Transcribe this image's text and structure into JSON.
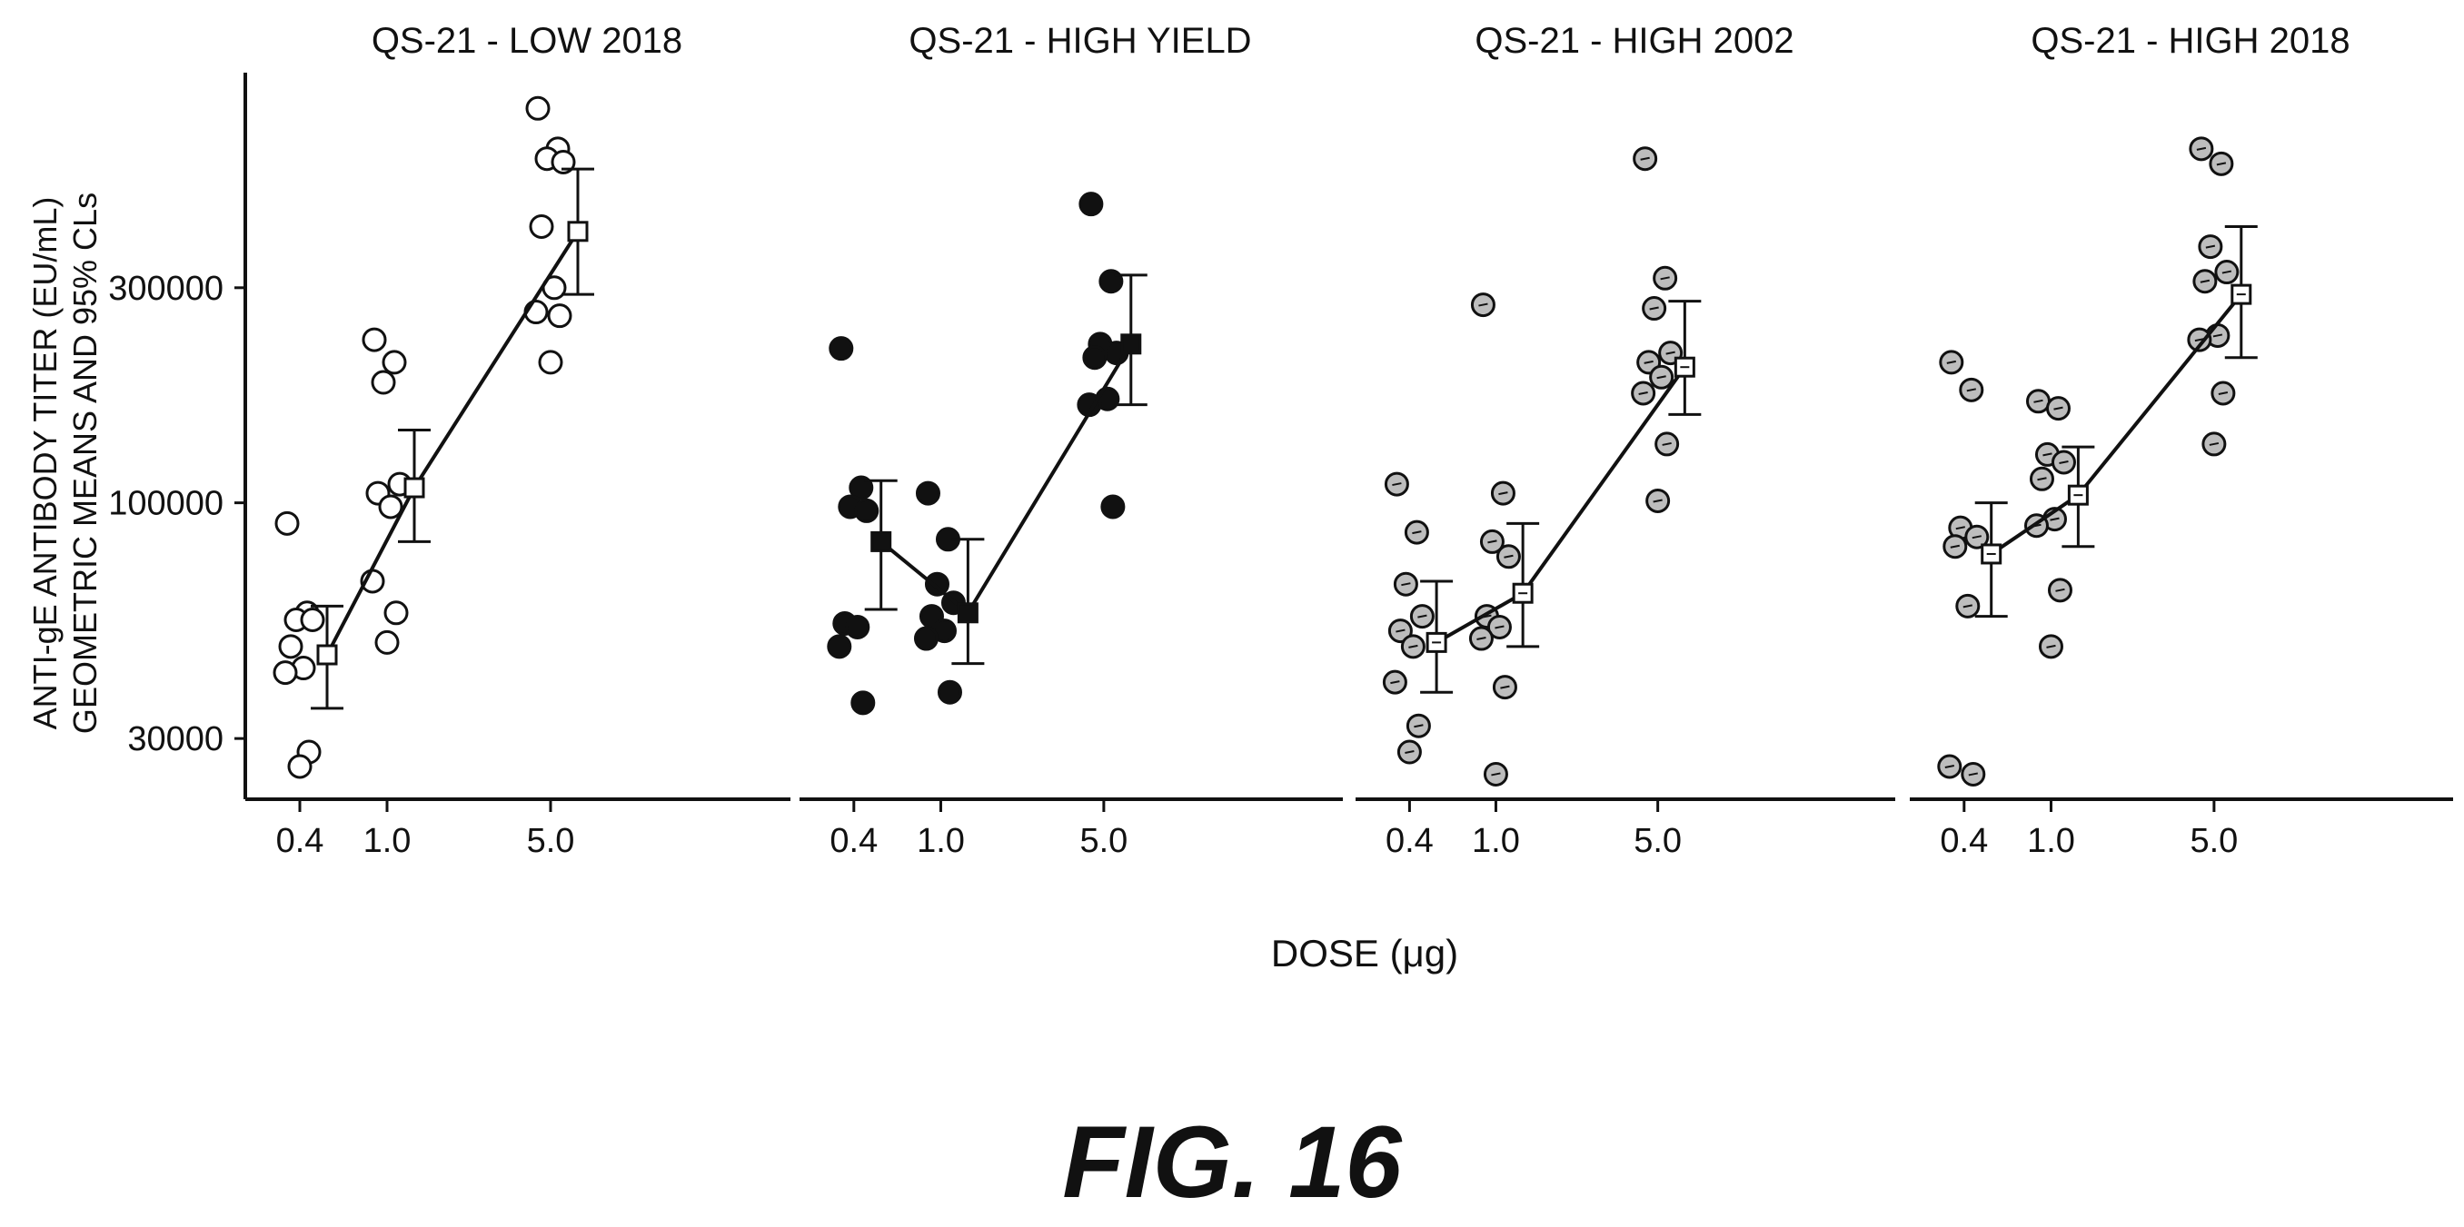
{
  "figure_caption": "FIG. 16",
  "chart_data": {
    "type": "scatter",
    "y_scale": "log",
    "ylim": [
      22000,
      900000
    ],
    "yticks": [
      30000,
      100000,
      300000
    ],
    "ytick_labels": [
      "30000",
      "100000",
      "300000"
    ],
    "ylabel_line1": "ANTI-gE ANTIBODY TITER (EU/mL)",
    "ylabel_line2": "GEOMETRIC MEANS AND 95% CLs",
    "xlabel": "DOSE (μg)",
    "xtick_labels": [
      "0.4",
      "1.0",
      "5.0"
    ],
    "grid": false,
    "panels": [
      {
        "title": "QS-21 - LOW 2018",
        "marker": "open",
        "points": {
          "0.4": [
            90000,
            57000,
            55000,
            55000,
            48000,
            43000,
            42000,
            28000,
            26000
          ],
          "1.0": [
            230000,
            205000,
            185000,
            110000,
            105000,
            98000,
            67000,
            57000,
            49000
          ],
          "5.0": [
            750000,
            610000,
            580000,
            570000,
            410000,
            300000,
            265000,
            260000,
            205000
          ]
        },
        "gmean": [
          46000,
          108000,
          400000
        ],
        "ci_lower": [
          35000,
          82000,
          290000
        ],
        "ci_upper": [
          59000,
          145000,
          550000
        ]
      },
      {
        "title": "QS-21 - HIGH YIELD",
        "marker": "filled",
        "points": {
          "0.4": [
            220000,
            108000,
            98000,
            96000,
            54000,
            53000,
            48000,
            36000
          ],
          "1.0": [
            105000,
            83000,
            66000,
            60000,
            56000,
            52000,
            50000,
            38000
          ],
          "5.0": [
            460000,
            310000,
            225000,
            215000,
            210000,
            170000,
            165000,
            98000
          ]
        },
        "gmean": [
          82000,
          57000,
          225000
        ],
        "ci_lower": [
          58000,
          44000,
          165000
        ],
        "ci_upper": [
          112000,
          83000,
          320000
        ]
      },
      {
        "title": "QS-21 - HIGH 2002",
        "marker": "shaded",
        "points": {
          "0.4": [
            110000,
            86000,
            66000,
            56000,
            52000,
            48000,
            40000,
            32000,
            28000
          ],
          "1.0": [
            275000,
            105000,
            82000,
            76000,
            56000,
            53000,
            50000,
            39000,
            25000
          ],
          "5.0": [
            580000,
            315000,
            270000,
            215000,
            205000,
            190000,
            175000,
            135000,
            101000
          ]
        },
        "gmean": [
          49000,
          63000,
          200000
        ],
        "ci_lower": [
          38000,
          48000,
          157000
        ],
        "ci_upper": [
          67000,
          90000,
          280000
        ]
      },
      {
        "title": "QS-21 - HIGH 2018",
        "marker": "shaded",
        "points": {
          "0.4": [
            205000,
            178000,
            88000,
            84000,
            80000,
            59000,
            26000,
            25000
          ],
          "1.0": [
            168000,
            162000,
            128000,
            123000,
            113000,
            92000,
            89000,
            64000,
            48000
          ],
          "5.0": [
            610000,
            565000,
            370000,
            325000,
            310000,
            235000,
            230000,
            175000,
            135000
          ]
        },
        "gmean": [
          77000,
          104000,
          290000
        ],
        "ci_lower": [
          56000,
          80000,
          210000
        ],
        "ci_upper": [
          100000,
          133000,
          410000
        ]
      }
    ]
  }
}
